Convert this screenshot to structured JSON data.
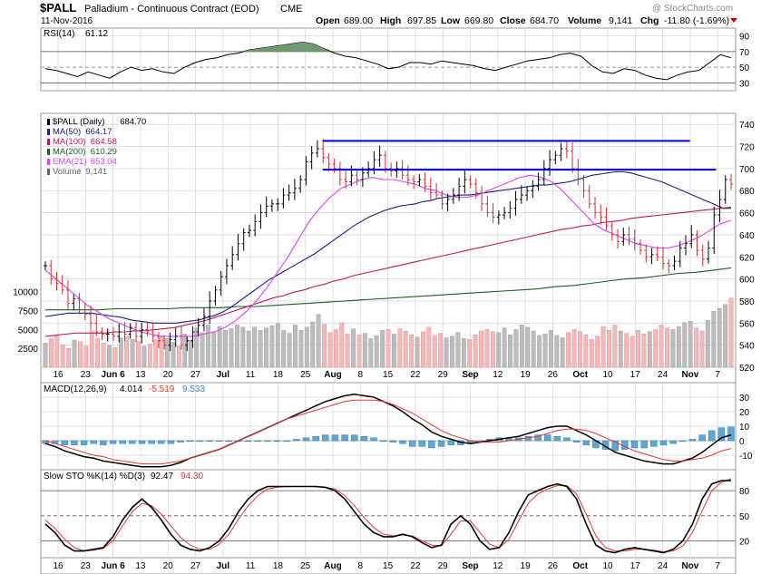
{
  "header": {
    "symbol": "$PALL",
    "description": "Palladium - Continuous Contract (EOD)",
    "exchange": "CME",
    "date": "11-Nov-2016",
    "open_label": "Open",
    "open": "689.00",
    "high_label": "High",
    "high": "697.85",
    "low_label": "Low",
    "low": "669.80",
    "close_label": "Close",
    "close": "684.70",
    "volume_label": "Volume",
    "volume": "9,141",
    "chg_label": "Chg",
    "chg": "-11.80 (-1.69%)",
    "watermark": "@ StockCharts.com"
  },
  "colors": {
    "panel_bg": "#ffffff",
    "grid": "#d8d8d8",
    "up_bar": "#000000",
    "down_bar": "#cc3333",
    "ma50": "#1a237e",
    "ma100": "#c2185b",
    "ma200": "#1b5e20",
    "ema21": "#e040fb",
    "resistance": "#0000dd",
    "vol_up": "#bcbcbc",
    "vol_down": "#f4b8b8",
    "macd_line": "#000000",
    "signal_line": "#e53935",
    "hist": "#5aa8d8",
    "rsi_fill": "#6f9a70"
  },
  "rsi": {
    "label": "RSI(14)",
    "value": "61.12",
    "ticks": [
      "90",
      "70",
      "50",
      "30"
    ],
    "current": 61.12
  },
  "price_legend": [
    {
      "name": "$PALL (Daily)",
      "value": "684.70",
      "color": "#000000"
    },
    {
      "name": "MA(50)",
      "value": "664.17",
      "color": "#1a237e"
    },
    {
      "name": "MA(100)",
      "value": "664.58",
      "color": "#c2185b"
    },
    {
      "name": "MA(200)",
      "value": "610.29",
      "color": "#1b5e20"
    },
    {
      "name": "EMA(21)",
      "value": "653.04",
      "color": "#e040fb"
    },
    {
      "name": "Volume",
      "value": "9,141",
      "color": "#666666"
    }
  ],
  "price_ticks": [
    "740",
    "720",
    "700",
    "680",
    "660",
    "640",
    "620",
    "600",
    "580",
    "560",
    "540",
    "520"
  ],
  "volume_ticks": [
    "10000",
    "7500",
    "5000",
    "2500"
  ],
  "x_labels": [
    "16",
    "23",
    "Jun 6",
    "13",
    "20",
    "27",
    "Jul",
    "11",
    "18",
    "25",
    "Aug",
    "8",
    "15",
    "22",
    "29",
    "Sep",
    "12",
    "19",
    "26",
    "Oct",
    "10",
    "17",
    "24",
    "Nov",
    "7"
  ],
  "macd": {
    "label": "MACD(12,26,9)",
    "macd": "4.014",
    "signal": "-5.519",
    "hist": "9.533",
    "ticks": [
      "30",
      "20",
      "10",
      "0",
      "-10"
    ]
  },
  "sto": {
    "label": "Slow STO %K(14) %D(3)",
    "k": "92.47",
    "d": "94.30",
    "ticks": [
      "80",
      "50",
      "20"
    ]
  },
  "chart_data": {
    "type": "line",
    "title": "$PALL Palladium - Continuous Contract (EOD) CME",
    "x_range": [
      "2016-05-12",
      "2016-11-11"
    ],
    "ylim": [
      520,
      750
    ],
    "resistance_levels": [
      {
        "from": "2016-07-25",
        "to": "2016-10-31",
        "y": 725
      },
      {
        "from": "2016-07-25",
        "to": "2016-11-07",
        "y": 699
      }
    ],
    "series": [
      {
        "name": "$PALL (Daily)",
        "values": [
          612,
          600,
          596,
          590,
          578,
          582,
          572,
          568,
          560,
          552,
          550,
          550,
          548,
          552,
          550,
          556,
          548,
          554,
          552,
          548,
          544,
          540,
          545,
          548,
          540,
          544,
          552,
          558,
          566,
          580,
          590,
          602,
          612,
          622,
          632,
          642,
          644,
          652,
          660,
          666,
          668,
          668,
          676,
          678,
          682,
          690,
          706,
          714,
          718,
          710,
          704,
          700,
          690,
          688,
          694,
          690,
          696,
          700,
          708,
          712,
          700,
          698,
          700,
          694,
          690,
          688,
          690,
          684,
          678,
          676,
          668,
          672,
          676,
          684,
          690,
          686,
          678,
          668,
          660,
          656,
          658,
          660,
          664,
          672,
          676,
          680,
          684,
          690,
          700,
          708,
          712,
          718,
          716,
          700,
          690,
          680,
          668,
          660,
          656,
          648,
          640,
          634,
          640,
          636,
          632,
          626,
          620,
          622,
          620,
          614,
          612,
          616,
          628,
          632,
          640,
          626,
          618,
          628,
          658,
          672,
          690,
          686
        ]
      },
      {
        "name": "MA(50)",
        "values": [
          566,
          567,
          568,
          569,
          569,
          569,
          569,
          568,
          567,
          566,
          565,
          563,
          562,
          561,
          560,
          560,
          560,
          560,
          561,
          562,
          563,
          565,
          567,
          570,
          574,
          579,
          584,
          589,
          594,
          599,
          603,
          607,
          611,
          615,
          619,
          623,
          628,
          633,
          638,
          643,
          648,
          652,
          656,
          659,
          662,
          664,
          666,
          667,
          668,
          670,
          671,
          673,
          674,
          675,
          676,
          676,
          677,
          678,
          679,
          680,
          681,
          682,
          683,
          684,
          685,
          685,
          686,
          687,
          688,
          690,
          692,
          694,
          695,
          696,
          697,
          697,
          696,
          694,
          692,
          690,
          688,
          685,
          682,
          679,
          676,
          673,
          670,
          667,
          664,
          664
        ]
      },
      {
        "name": "MA(100)",
        "values": [
          548,
          549,
          550,
          551,
          551,
          551,
          551,
          552,
          552,
          553,
          553,
          554,
          555,
          556,
          558,
          560,
          562,
          565,
          568,
          571,
          574,
          577,
          580,
          583,
          585,
          588,
          590,
          593,
          595,
          598,
          600,
          603,
          605,
          607,
          609,
          611,
          613,
          615,
          617,
          619,
          621,
          623,
          625,
          627,
          629,
          631,
          633,
          635,
          637,
          639,
          641,
          643,
          645,
          646,
          648,
          649,
          651,
          652,
          653,
          655,
          656,
          657,
          658,
          659,
          660,
          661,
          662,
          663,
          664,
          665
        ]
      },
      {
        "name": "MA(200)",
        "values": [
          572,
          572,
          572,
          572,
          573,
          573,
          573,
          573,
          574,
          574,
          574,
          575,
          575,
          576,
          577,
          578,
          579,
          580,
          581,
          582,
          583,
          584,
          585,
          586,
          587,
          588,
          589,
          590,
          591,
          593,
          594,
          596,
          598,
          600,
          601,
          603,
          605,
          606,
          608,
          610
        ]
      },
      {
        "name": "EMA(21)",
        "values": [
          608,
          600,
          592,
          584,
          576,
          570,
          564,
          560,
          556,
          552,
          550,
          548,
          548,
          548,
          548,
          550,
          552,
          556,
          562,
          570,
          580,
          592,
          606,
          620,
          636,
          652,
          664,
          674,
          682,
          686,
          690,
          692,
          690,
          690,
          688,
          686,
          682,
          680,
          676,
          674,
          674,
          676,
          680,
          684,
          688,
          692,
          694,
          692,
          688,
          680,
          670,
          660,
          650,
          644,
          640,
          636,
          632,
          630,
          628,
          628,
          630,
          634,
          638,
          644,
          650,
          653
        ]
      },
      {
        "name": "Volume",
        "values": [
          3200,
          3800,
          4200,
          3000,
          2500,
          3600,
          3400,
          2800,
          4800,
          3800,
          3200,
          2900,
          2600,
          3900,
          4100,
          3700,
          3400,
          2800,
          3100,
          3600,
          4000,
          3800,
          3300,
          2800,
          4400,
          3600,
          5200,
          4600,
          5600,
          4700,
          5400,
          4900,
          5100,
          5600,
          5300,
          4800,
          5300,
          4900,
          5200,
          5500,
          5800,
          4900,
          4500,
          5600,
          4900,
          5300,
          6000,
          7000,
          5700,
          4600,
          5000,
          5900,
          4400,
          5100,
          4300,
          4500,
          3800,
          4200,
          4900,
          5000,
          4400,
          5100,
          4800,
          4300,
          4000,
          4700,
          5300,
          4200,
          4500,
          3900,
          4100,
          4600,
          3800,
          3700,
          4300,
          4800,
          5000,
          4700,
          4600,
          5200,
          4300,
          5000,
          5600,
          5300,
          4800,
          4200,
          4400,
          4900,
          4200,
          3900,
          4600,
          5000,
          4700,
          4300,
          3700,
          4100,
          5400,
          4900,
          5600,
          4800,
          4500,
          4100,
          4900,
          4400,
          4700,
          5000,
          5600,
          5200,
          5000,
          5400,
          5900,
          6100,
          5200,
          4800,
          6200,
          7400,
          7800,
          8300,
          9141
        ]
      },
      {
        "name": "MACD(12,26,9)",
        "values": [
          -2,
          -4,
          -7,
          -9,
          -11,
          -12,
          -14,
          -15,
          -16,
          -17,
          -18,
          -18,
          -18,
          -17,
          -15,
          -12,
          -10,
          -8,
          -6,
          -3,
          0,
          3,
          6,
          9,
          12,
          15,
          18,
          21,
          24,
          27,
          29,
          31,
          32,
          31,
          30,
          27,
          24,
          20,
          15,
          11,
          6,
          3,
          1,
          -1,
          -2,
          -1,
          0,
          1,
          2,
          3,
          5,
          7,
          9,
          10,
          10,
          7,
          4,
          0,
          -4,
          -8,
          -10,
          -12,
          -14,
          -15,
          -16,
          -16,
          -14,
          -12,
          -8,
          -3,
          2,
          4
        ]
      },
      {
        "name": "Signal",
        "values": [
          0,
          -2,
          -4,
          -6,
          -8,
          -10,
          -11,
          -13,
          -14,
          -15,
          -16,
          -16,
          -16,
          -15,
          -14,
          -12,
          -10,
          -8,
          -6,
          -3,
          0,
          3,
          6,
          9,
          12,
          15,
          17,
          19,
          21,
          23,
          25,
          27,
          28,
          28,
          28,
          27,
          25,
          22,
          19,
          15,
          11,
          7,
          4,
          2,
          0,
          -1,
          -1,
          -1,
          0,
          1,
          2,
          3,
          5,
          7,
          8,
          8,
          7,
          5,
          2,
          -1,
          -4,
          -7,
          -9,
          -11,
          -13,
          -14,
          -14,
          -13,
          -12,
          -10,
          -7,
          -5.5
        ]
      },
      {
        "name": "%K(14)",
        "values": [
          40,
          30,
          15,
          8,
          8,
          10,
          12,
          25,
          45,
          60,
          70,
          60,
          45,
          28,
          15,
          10,
          8,
          12,
          20,
          35,
          55,
          70,
          80,
          85,
          85,
          85,
          85,
          85,
          85,
          84,
          80,
          70,
          55,
          40,
          30,
          25,
          25,
          28,
          25,
          18,
          12,
          15,
          40,
          50,
          40,
          20,
          10,
          12,
          30,
          55,
          75,
          80,
          85,
          88,
          85,
          70,
          40,
          15,
          8,
          6,
          10,
          12,
          10,
          8,
          6,
          10,
          20,
          40,
          70,
          88,
          92,
          92
        ]
      },
      {
        "name": "%D(3)",
        "values": [
          45,
          35,
          22,
          12,
          8,
          9,
          11,
          20,
          38,
          55,
          65,
          62,
          52,
          38,
          24,
          15,
          10,
          10,
          16,
          28,
          46,
          62,
          74,
          82,
          84,
          85,
          85,
          85,
          85,
          84,
          82,
          74,
          62,
          48,
          36,
          28,
          26,
          27,
          26,
          20,
          15,
          14,
          28,
          44,
          44,
          30,
          16,
          12,
          22,
          44,
          65,
          76,
          82,
          86,
          86,
          76,
          52,
          26,
          12,
          8,
          8,
          10,
          10,
          9,
          7,
          8,
          14,
          30,
          56,
          80,
          90,
          94.3
        ]
      }
    ]
  }
}
